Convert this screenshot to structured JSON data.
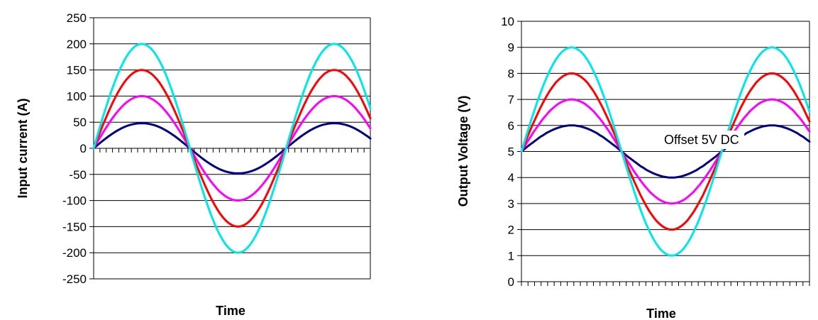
{
  "chart_data": [
    {
      "type": "line",
      "xlabel": "Time",
      "ylabel": "Input current (A)",
      "ylim": [
        -250,
        250
      ],
      "yticks": [
        "250",
        "200",
        "150",
        "100",
        "50",
        "0",
        "-50",
        "-100",
        "-150",
        "-200",
        "-250"
      ],
      "grid": "horizontal",
      "x": [
        0,
        0.25,
        0.5,
        0.75,
        1,
        1.25,
        1.5,
        1.75,
        2,
        2.25,
        2.5,
        2.75,
        3,
        3.25,
        3.5,
        3.75,
        4,
        4.25,
        4.5,
        4.75,
        5,
        5.25,
        5.5,
        5.75,
        6,
        6.25,
        6.5,
        6.75,
        7,
        7.25,
        7.5,
        7.75,
        8,
        8.25,
        8.5,
        8.75,
        9,
        9.25,
        9.5,
        9.75,
        10,
        10.25,
        10.5,
        10.75,
        11,
        11.25,
        11.5,
        11.75,
        12,
        12.25,
        12.5,
        12.75,
        13,
        13.25,
        13.5,
        13.75,
        14,
        14.25,
        14.5,
        14.75,
        15,
        15.25,
        15.5,
        15.75,
        16,
        16.25,
        16.5,
        16.75,
        17,
        17.25,
        17.5,
        17.75,
        18,
        18.25,
        18.5,
        18.75,
        19,
        19.25,
        19.5,
        19.75,
        20,
        20.25,
        20.5,
        20.75,
        21,
        21.25,
        21.5,
        21.75,
        22,
        22.25,
        22.5,
        22.75,
        23
      ],
      "series": [
        {
          "color": "#000080",
          "values": [
            0,
            4.8,
            9.6,
            14.3,
            18.8,
            23.1,
            27.1,
            30.9,
            34.4,
            37.5,
            40.3,
            42.6,
            44.5,
            46.0,
            47.1,
            47.8,
            48.0,
            47.8,
            47.1,
            46.0,
            44.5,
            42.6,
            40.3,
            37.5,
            34.4,
            30.9,
            27.1,
            23.1,
            18.8,
            14.3,
            9.6,
            4.8,
            0.0,
            -4.8,
            -9.6,
            -14.3,
            -18.8,
            -23.1,
            -27.1,
            -30.9,
            -34.4,
            -37.5,
            -40.3,
            -42.6,
            -44.5,
            -46.0,
            -47.1,
            -47.8,
            -48.0,
            -47.8,
            -47.1,
            -46.0,
            -44.5,
            -42.6,
            -40.3,
            -37.5,
            -34.4,
            -30.9,
            -27.1,
            -23.1,
            -18.8,
            -14.3,
            -9.6,
            -4.8,
            0.0,
            4.8,
            9.6,
            14.3,
            18.8,
            23.1,
            27.1,
            30.9,
            34.4,
            37.5,
            40.3,
            42.6,
            44.5,
            46.0,
            47.1,
            47.8,
            48.0,
            47.8,
            47.1,
            46.0,
            44.5,
            42.6,
            40.3,
            37.5,
            34.4,
            30.9,
            27.1,
            23.1,
            18.8
          ]
        },
        {
          "color": "#ff00ff",
          "values": [
            0,
            9.8,
            19.5,
            29.0,
            38.3,
            47.1,
            55.6,
            63.4,
            70.7,
            77.3,
            83.1,
            88.2,
            92.4,
            95.7,
            98.1,
            99.5,
            100.0,
            99.5,
            98.1,
            95.7,
            92.4,
            88.2,
            83.1,
            77.3,
            70.7,
            63.4,
            55.6,
            47.1,
            38.3,
            29.0,
            19.5,
            9.8,
            0.0,
            -9.8,
            -19.5,
            -29.0,
            -38.3,
            -47.1,
            -55.6,
            -63.4,
            -70.7,
            -77.3,
            -83.1,
            -88.2,
            -92.4,
            -95.7,
            -98.1,
            -99.5,
            -100.0,
            -99.5,
            -98.1,
            -95.7,
            -92.4,
            -88.2,
            -83.1,
            -77.3,
            -70.7,
            -63.4,
            -55.6,
            -47.1,
            -38.3,
            -29.0,
            -19.5,
            -9.8,
            0.0,
            9.8,
            19.5,
            29.0,
            38.3,
            47.1,
            55.6,
            63.4,
            70.7,
            77.3,
            83.1,
            88.2,
            92.4,
            95.7,
            98.1,
            99.5,
            100.0,
            99.5,
            98.1,
            95.7,
            92.4,
            88.2,
            83.1,
            77.3,
            70.7,
            63.4,
            55.6,
            47.1,
            38.3
          ]
        },
        {
          "color": "#ff0000",
          "values": [
            0,
            14.7,
            29.3,
            43.5,
            57.4,
            70.7,
            83.3,
            95.2,
            106.1,
            115.9,
            124.7,
            132.3,
            138.6,
            143.6,
            147.1,
            149.3,
            150.0,
            149.3,
            147.1,
            143.6,
            138.6,
            132.3,
            124.7,
            115.9,
            106.1,
            95.2,
            83.3,
            70.7,
            57.4,
            43.5,
            29.3,
            14.7,
            0.0,
            -14.7,
            -29.3,
            -43.5,
            -57.4,
            -70.7,
            -83.3,
            -95.2,
            -106.1,
            -115.9,
            -124.7,
            -132.3,
            -138.6,
            -143.6,
            -147.1,
            -149.3,
            -150.0,
            -149.3,
            -147.1,
            -143.6,
            -138.6,
            -132.3,
            -124.7,
            -115.9,
            -106.1,
            -95.2,
            -83.3,
            -70.7,
            -57.4,
            -43.5,
            -29.3,
            -14.7,
            0.0,
            14.7,
            29.3,
            43.5,
            57.4,
            70.7,
            83.3,
            95.2,
            106.1,
            115.9,
            124.7,
            132.3,
            138.6,
            143.6,
            147.1,
            149.3,
            150.0,
            149.3,
            147.1,
            143.6,
            138.6,
            132.3,
            124.7,
            115.9,
            106.1,
            95.2,
            83.3,
            70.7,
            57.4
          ]
        },
        {
          "color": "#00e5e5",
          "values": [
            0,
            19.6,
            39.0,
            58.1,
            76.5,
            94.3,
            111.1,
            126.9,
            141.4,
            154.6,
            166.3,
            176.4,
            184.8,
            191.4,
            196.2,
            199.0,
            200.0,
            199.0,
            196.2,
            191.4,
            184.8,
            176.4,
            166.3,
            154.6,
            141.4,
            126.9,
            111.1,
            94.3,
            76.5,
            58.1,
            39.0,
            19.6,
            0.0,
            -19.6,
            -39.0,
            -58.1,
            -76.5,
            -94.3,
            -111.1,
            -126.9,
            -141.4,
            -154.6,
            -166.3,
            -176.4,
            -184.8,
            -191.4,
            -196.2,
            -199.0,
            -200.0,
            -199.0,
            -196.2,
            -191.4,
            -184.8,
            -176.4,
            -166.3,
            -154.6,
            -141.4,
            -126.9,
            -111.1,
            -94.3,
            -76.5,
            -58.1,
            -39.0,
            -19.6,
            0.0,
            19.6,
            39.0,
            58.1,
            76.5,
            94.3,
            111.1,
            126.9,
            141.4,
            154.6,
            166.3,
            176.4,
            184.8,
            191.4,
            196.2,
            199.0,
            200.0,
            199.0,
            196.2,
            191.4,
            184.8,
            176.4,
            166.3,
            154.6,
            141.4,
            126.9,
            111.1,
            94.3,
            76.5
          ]
        }
      ]
    },
    {
      "type": "line",
      "xlabel": "Time",
      "ylabel": "Output Voltage (V)",
      "ylim": [
        0,
        10
      ],
      "yticks": [
        "10",
        "9",
        "8",
        "7",
        "6",
        "5",
        "4",
        "3",
        "2",
        "1",
        "0"
      ],
      "grid": "horizontal",
      "annotation": "Offset 5V DC",
      "x": [
        0,
        0.25,
        0.5,
        0.75,
        1,
        1.25,
        1.5,
        1.75,
        2,
        2.25,
        2.5,
        2.75,
        3,
        3.25,
        3.5,
        3.75,
        4,
        4.25,
        4.5,
        4.75,
        5,
        5.25,
        5.5,
        5.75,
        6,
        6.25,
        6.5,
        6.75,
        7,
        7.25,
        7.5,
        7.75,
        8,
        8.25,
        8.5,
        8.75,
        9,
        9.25,
        9.5,
        9.75,
        10,
        10.25,
        10.5,
        10.75,
        11,
        11.25,
        11.5,
        11.75,
        12,
        12.25,
        12.5,
        12.75,
        13,
        13.25,
        13.5,
        13.75,
        14,
        14.25,
        14.5,
        14.75,
        15,
        15.25,
        15.5,
        15.75,
        16,
        16.25,
        16.5,
        16.75,
        17,
        17.25,
        17.5,
        17.75,
        18,
        18.25,
        18.5,
        18.75,
        19,
        19.25,
        19.5,
        19.75,
        20,
        20.25,
        20.5,
        20.75,
        21,
        21.25,
        21.5,
        21.75,
        22,
        22.25,
        22.5,
        22.75,
        23
      ],
      "series": [
        {
          "color": "#000080",
          "values": [
            5.0,
            5.1,
            5.2,
            5.29,
            5.38,
            5.47,
            5.56,
            5.63,
            5.71,
            5.77,
            5.83,
            5.88,
            5.92,
            5.96,
            5.98,
            6.0,
            6.0,
            6.0,
            5.98,
            5.96,
            5.92,
            5.88,
            5.83,
            5.77,
            5.71,
            5.63,
            5.56,
            5.47,
            5.38,
            5.29,
            5.2,
            5.1,
            5.0,
            4.9,
            4.8,
            4.71,
            4.62,
            4.53,
            4.44,
            4.37,
            4.29,
            4.23,
            4.17,
            4.12,
            4.08,
            4.04,
            4.02,
            4.0,
            4.0,
            4.0,
            4.02,
            4.04,
            4.08,
            4.12,
            4.17,
            4.23,
            4.29,
            4.37,
            4.44,
            4.53,
            4.62,
            4.71,
            4.8,
            4.9,
            5.0,
            5.1,
            5.2,
            5.29,
            5.38,
            5.47,
            5.56,
            5.63,
            5.71,
            5.77,
            5.83,
            5.88,
            5.92,
            5.96,
            5.98,
            6.0,
            6.0,
            6.0,
            5.98,
            5.96,
            5.92,
            5.88,
            5.83,
            5.77,
            5.71,
            5.63,
            5.56,
            5.47,
            5.38
          ]
        },
        {
          "color": "#ff00ff",
          "values": [
            5.0,
            5.2,
            5.39,
            5.58,
            5.77,
            5.94,
            6.11,
            6.27,
            6.41,
            6.55,
            6.66,
            6.76,
            6.85,
            6.91,
            6.96,
            6.99,
            7.0,
            6.99,
            6.96,
            6.91,
            6.85,
            6.76,
            6.66,
            6.55,
            6.41,
            6.27,
            6.11,
            5.94,
            5.77,
            5.58,
            5.39,
            5.2,
            5.0,
            4.8,
            4.61,
            4.42,
            4.23,
            4.06,
            3.89,
            3.73,
            3.59,
            3.45,
            3.34,
            3.24,
            3.15,
            3.09,
            3.04,
            3.01,
            3.0,
            3.01,
            3.04,
            3.09,
            3.15,
            3.24,
            3.34,
            3.45,
            3.59,
            3.73,
            3.89,
            4.06,
            4.23,
            4.42,
            4.61,
            4.8,
            5.0,
            5.2,
            5.39,
            5.58,
            5.77,
            5.94,
            6.11,
            6.27,
            6.41,
            6.55,
            6.66,
            6.76,
            6.85,
            6.91,
            6.96,
            6.99,
            7.0,
            6.99,
            6.96,
            6.91,
            6.85,
            6.76,
            6.66,
            6.55,
            6.41,
            6.27,
            6.11,
            5.94,
            5.77
          ]
        },
        {
          "color": "#ff0000",
          "values": [
            5.0,
            5.29,
            5.59,
            5.87,
            6.15,
            6.41,
            6.67,
            6.9,
            7.12,
            7.32,
            7.49,
            7.65,
            7.77,
            7.87,
            7.94,
            7.99,
            8.0,
            7.99,
            7.94,
            7.87,
            7.77,
            7.65,
            7.49,
            7.32,
            7.12,
            6.9,
            6.67,
            6.41,
            6.15,
            5.87,
            5.59,
            5.29,
            5.0,
            4.71,
            4.41,
            4.13,
            3.85,
            3.59,
            3.33,
            3.1,
            2.88,
            2.68,
            2.51,
            2.35,
            2.23,
            2.13,
            2.06,
            2.01,
            2.0,
            2.01,
            2.06,
            2.13,
            2.23,
            2.35,
            2.51,
            2.68,
            2.88,
            3.1,
            3.33,
            3.59,
            3.85,
            4.13,
            4.41,
            4.71,
            5.0,
            5.29,
            5.59,
            5.87,
            6.15,
            6.41,
            6.67,
            6.9,
            7.12,
            7.32,
            7.49,
            7.65,
            7.77,
            7.87,
            7.94,
            7.99,
            8.0,
            7.99,
            7.94,
            7.87,
            7.77,
            7.65,
            7.49,
            7.32,
            7.12,
            6.9,
            6.67,
            6.41,
            6.15
          ]
        },
        {
          "color": "#00e5e5",
          "values": [
            5.0,
            5.39,
            5.78,
            6.16,
            6.53,
            6.89,
            7.22,
            7.54,
            7.83,
            8.09,
            8.33,
            8.53,
            8.7,
            8.83,
            8.92,
            8.98,
            9.0,
            8.98,
            8.92,
            8.83,
            8.7,
            8.53,
            8.33,
            8.09,
            7.83,
            7.54,
            7.22,
            6.89,
            6.53,
            6.16,
            5.78,
            5.39,
            5.0,
            4.61,
            4.22,
            3.84,
            3.47,
            3.11,
            2.78,
            2.46,
            2.17,
            1.91,
            1.67,
            1.47,
            1.3,
            1.17,
            1.08,
            1.02,
            1.0,
            1.02,
            1.08,
            1.17,
            1.3,
            1.47,
            1.67,
            1.91,
            2.17,
            2.46,
            2.78,
            3.11,
            3.47,
            3.84,
            4.22,
            4.61,
            5.0,
            5.39,
            5.78,
            6.16,
            6.53,
            6.89,
            7.22,
            7.54,
            7.83,
            8.09,
            8.33,
            8.53,
            8.7,
            8.83,
            8.92,
            8.98,
            9.0,
            8.98,
            8.92,
            8.83,
            8.7,
            8.53,
            8.33,
            8.09,
            7.83,
            7.54,
            7.22,
            6.89,
            6.53
          ]
        }
      ]
    }
  ]
}
